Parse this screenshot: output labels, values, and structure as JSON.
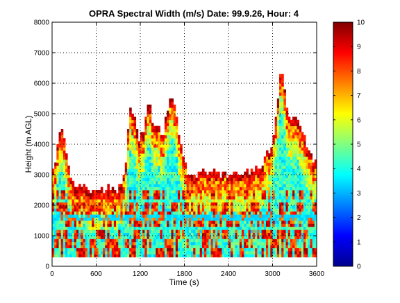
{
  "chart_data": {
    "type": "heatmap",
    "title": "OPRA Spectral Width (m/s)  Date: 99.9.26, Hour: 4",
    "xlabel": "Time (s)",
    "ylabel": "Height (m AGL)",
    "xlim": [
      0,
      3600
    ],
    "ylim": [
      0,
      8000
    ],
    "xticks": [
      0,
      600,
      1200,
      1800,
      2400,
      3000,
      3600
    ],
    "yticks": [
      0,
      1000,
      2000,
      3000,
      4000,
      5000,
      6000,
      7000,
      8000
    ],
    "grid": true,
    "colorbar": {
      "colormap": "jet",
      "range": [
        0,
        10
      ],
      "ticks": [
        0,
        1,
        2,
        3,
        4,
        5,
        6,
        7,
        8,
        9,
        10
      ],
      "colors": [
        "#00008f",
        "#0000ff",
        "#0080ff",
        "#00ffff",
        "#80ff80",
        "#ffff00",
        "#ff8000",
        "#ff0000",
        "#800000"
      ]
    },
    "data_floor_height": 300,
    "range_gate_spacing": 100,
    "time_step": 30,
    "echo_top_profile": {
      "time": [
        0,
        60,
        90,
        150,
        210,
        240,
        300,
        600,
        900,
        1000,
        1050,
        1120,
        1180,
        1260,
        1320,
        1380,
        1440,
        1500,
        1560,
        1620,
        1680,
        1740,
        1800,
        1860,
        1920,
        2100,
        2400,
        2700,
        2850,
        2950,
        3000,
        3030,
        3060,
        3090,
        3120,
        3150,
        3180,
        3210,
        3240,
        3300,
        3360,
        3420,
        3480,
        3540,
        3600
      ],
      "height": [
        3000,
        3300,
        4400,
        4400,
        3500,
        3000,
        2500,
        2500,
        2500,
        3000,
        5200,
        5000,
        4200,
        4500,
        5500,
        4500,
        4700,
        4000,
        5000,
        5600,
        5200,
        4000,
        3500,
        3000,
        3000,
        3000,
        3000,
        3000,
        3300,
        3800,
        3700,
        4500,
        5300,
        5800,
        6500,
        6300,
        5500,
        5000,
        4600,
        4800,
        4500,
        4200,
        3800,
        3500,
        3300
      ]
    }
  }
}
